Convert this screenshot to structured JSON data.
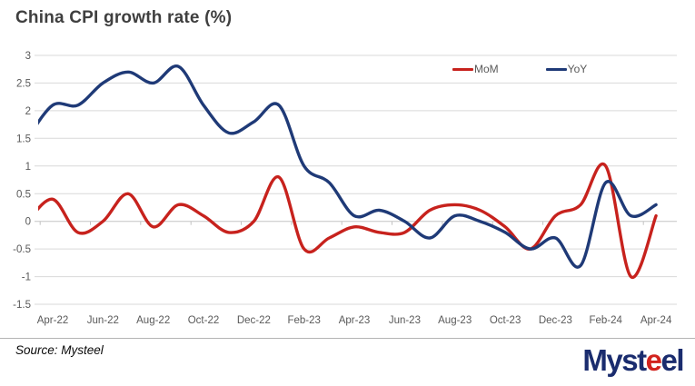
{
  "chart_data": {
    "type": "line",
    "title": "China CPI growth rate (%)",
    "xlabel": "",
    "ylabel": "",
    "ylim": [
      -1.5,
      3
    ],
    "y_ticks": [
      3,
      2.5,
      2,
      1.5,
      1,
      0.5,
      0,
      -0.5,
      -1,
      -1.5
    ],
    "grid": true,
    "legend_position": "top-right",
    "x_axis_labels": [
      "Apr-22",
      "Jun-22",
      "Aug-22",
      "Oct-22",
      "Dec-22",
      "Feb-23",
      "Apr-23",
      "Jun-23",
      "Aug-23",
      "Oct-23",
      "Dec-23",
      "Feb-24",
      "Apr-24"
    ],
    "months": [
      "Mar-22",
      "Apr-22",
      "May-22",
      "Jun-22",
      "Jul-22",
      "Aug-22",
      "Sep-22",
      "Oct-22",
      "Nov-22",
      "Dec-22",
      "Jan-23",
      "Feb-23",
      "Mar-23",
      "Apr-23",
      "May-23",
      "Jun-23",
      "Jul-23",
      "Aug-23",
      "Sep-23",
      "Oct-23",
      "Nov-23",
      "Dec-23",
      "Jan-24",
      "Feb-24",
      "Mar-24",
      "Apr-24"
    ],
    "series": [
      {
        "name": "MoM",
        "color": "#c7221d",
        "values": [
          0.0,
          0.4,
          -0.2,
          0.0,
          0.5,
          -0.1,
          0.3,
          0.1,
          -0.2,
          0.0,
          0.8,
          -0.5,
          -0.3,
          -0.1,
          -0.2,
          -0.2,
          0.2,
          0.3,
          0.2,
          -0.1,
          -0.5,
          0.1,
          0.3,
          1.0,
          -1.0,
          0.1
        ]
      },
      {
        "name": "YoY",
        "color": "#1f3a77",
        "values": [
          1.5,
          2.1,
          2.1,
          2.5,
          2.7,
          2.5,
          2.8,
          2.1,
          1.6,
          1.8,
          2.1,
          1.0,
          0.7,
          0.1,
          0.2,
          0.0,
          -0.3,
          0.1,
          0.0,
          -0.2,
          -0.5,
          -0.3,
          -0.8,
          0.7,
          0.1,
          0.3
        ]
      }
    ],
    "grid_color": "#d9d9d9",
    "zero_axis_color": "#c3c3c3",
    "tick_label_color": "#595959"
  },
  "footer": {
    "source": "Source: Mysteel",
    "logo": {
      "part1": "Myst",
      "accent": "e",
      "part2": "el"
    }
  }
}
